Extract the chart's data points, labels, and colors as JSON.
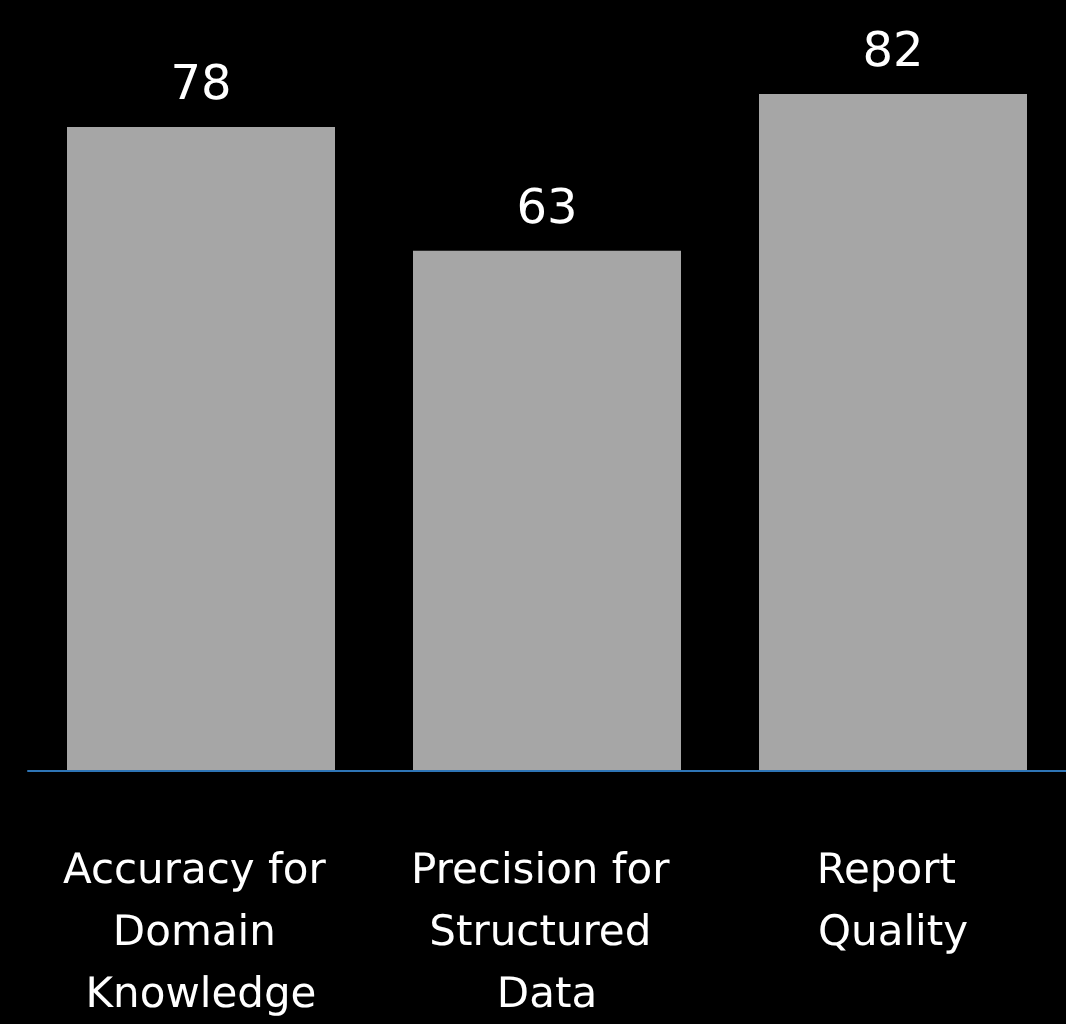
{
  "chart_data": {
    "type": "bar",
    "categories": [
      "Accuracy for Domain Knowledge",
      "Precision for Structured Data",
      "Report Quality"
    ],
    "values": [
      78,
      63,
      82
    ],
    "color": "#a6a6a6",
    "data_labels": true
  }
}
